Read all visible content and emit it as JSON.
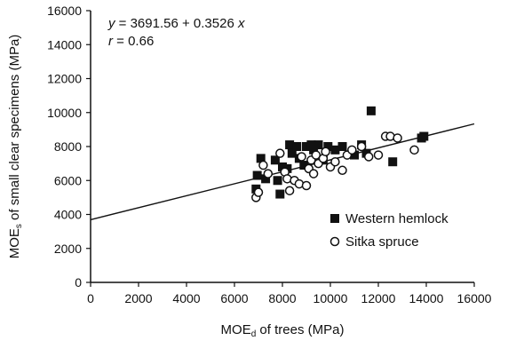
{
  "chart_data": {
    "type": "scatter",
    "xlim": [
      0,
      16000
    ],
    "ylim": [
      0,
      16000
    ],
    "x_ticks": [
      "0",
      "2000",
      "4000",
      "6000",
      "8000",
      "10000",
      "12000",
      "14000",
      "16000"
    ],
    "y_ticks": [
      "0",
      "2000",
      "4000",
      "6000",
      "8000",
      "10000",
      "12000",
      "14000",
      "16000"
    ],
    "xlabel": {
      "main": "MOE",
      "sub": "d",
      "rest": " of trees (MPa)"
    },
    "ylabel": {
      "main": "MOE",
      "sub": "s",
      "rest": " of small clear specimens (MPa)"
    },
    "equation": {
      "y_var": "y",
      "eq_text": " = 3691.56 + 0.3526 ",
      "x_var": "x",
      "r_var": "r",
      "r_text": " = 0.66"
    },
    "regression": {
      "intercept": 3691.56,
      "slope": 0.3526,
      "x_range": [
        0,
        16000
      ]
    },
    "grid": false,
    "legend_position": "right",
    "series": [
      {
        "name": "Western hemlock",
        "marker": "filled-square",
        "color": "#111111",
        "points": [
          [
            6900,
            5500
          ],
          [
            6950,
            6300
          ],
          [
            7100,
            7300
          ],
          [
            7300,
            6100
          ],
          [
            7700,
            7200
          ],
          [
            7800,
            6000
          ],
          [
            7900,
            5200
          ],
          [
            8000,
            6800
          ],
          [
            8200,
            6700
          ],
          [
            8300,
            8100
          ],
          [
            8400,
            7600
          ],
          [
            8600,
            8000
          ],
          [
            8700,
            7300
          ],
          [
            8900,
            6900
          ],
          [
            9000,
            8000
          ],
          [
            9200,
            8100
          ],
          [
            9300,
            7800
          ],
          [
            9500,
            8100
          ],
          [
            9700,
            7200
          ],
          [
            9900,
            8000
          ],
          [
            10200,
            7800
          ],
          [
            10500,
            8000
          ],
          [
            11000,
            7500
          ],
          [
            11300,
            8100
          ],
          [
            11500,
            7600
          ],
          [
            11700,
            10100
          ],
          [
            12600,
            7100
          ],
          [
            13800,
            8500
          ],
          [
            13900,
            8600
          ]
        ]
      },
      {
        "name": "Sitka spruce",
        "marker": "open-circle",
        "color": "#111111",
        "points": [
          [
            6900,
            5000
          ],
          [
            7000,
            5300
          ],
          [
            7200,
            6900
          ],
          [
            7400,
            6400
          ],
          [
            7900,
            7600
          ],
          [
            8100,
            6500
          ],
          [
            8200,
            6100
          ],
          [
            8300,
            5400
          ],
          [
            8500,
            6000
          ],
          [
            8700,
            5800
          ],
          [
            8800,
            7400
          ],
          [
            9000,
            5700
          ],
          [
            9100,
            6700
          ],
          [
            9200,
            7200
          ],
          [
            9300,
            6400
          ],
          [
            9400,
            7500
          ],
          [
            9500,
            7000
          ],
          [
            9700,
            7300
          ],
          [
            9800,
            7700
          ],
          [
            10000,
            6800
          ],
          [
            10200,
            7100
          ],
          [
            10500,
            6600
          ],
          [
            10700,
            7500
          ],
          [
            10900,
            7800
          ],
          [
            11300,
            8000
          ],
          [
            11600,
            7400
          ],
          [
            12000,
            7500
          ],
          [
            12300,
            8600
          ],
          [
            12500,
            8600
          ],
          [
            12800,
            8500
          ],
          [
            13500,
            7800
          ]
        ]
      }
    ]
  }
}
